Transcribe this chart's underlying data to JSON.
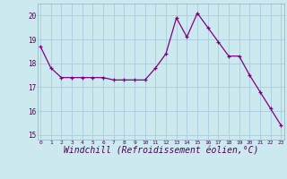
{
  "x": [
    0,
    1,
    2,
    3,
    4,
    5,
    6,
    7,
    8,
    9,
    10,
    11,
    12,
    13,
    14,
    15,
    16,
    17,
    18,
    19,
    20,
    21,
    22,
    23
  ],
  "y": [
    18.7,
    17.8,
    17.4,
    17.4,
    17.4,
    17.4,
    17.4,
    17.3,
    17.3,
    17.3,
    17.3,
    17.8,
    18.4,
    19.9,
    19.1,
    20.1,
    19.5,
    18.9,
    18.3,
    18.3,
    17.5,
    16.8,
    16.1,
    15.4
  ],
  "line_color": "#800080",
  "marker": "+",
  "marker_size": 3,
  "bg_color": "#cce9f0",
  "grid_color": "#aaccdd",
  "xlabel": "Windchill (Refroidissement éolien,°C)",
  "xlabel_fontsize": 7,
  "yticks": [
    15,
    16,
    17,
    18,
    19,
    20
  ],
  "xticks": [
    0,
    1,
    2,
    3,
    4,
    5,
    6,
    7,
    8,
    9,
    10,
    11,
    12,
    13,
    14,
    15,
    16,
    17,
    18,
    19,
    20,
    21,
    22,
    23
  ],
  "ylim": [
    14.8,
    20.5
  ],
  "xlim": [
    -0.3,
    23.3
  ]
}
